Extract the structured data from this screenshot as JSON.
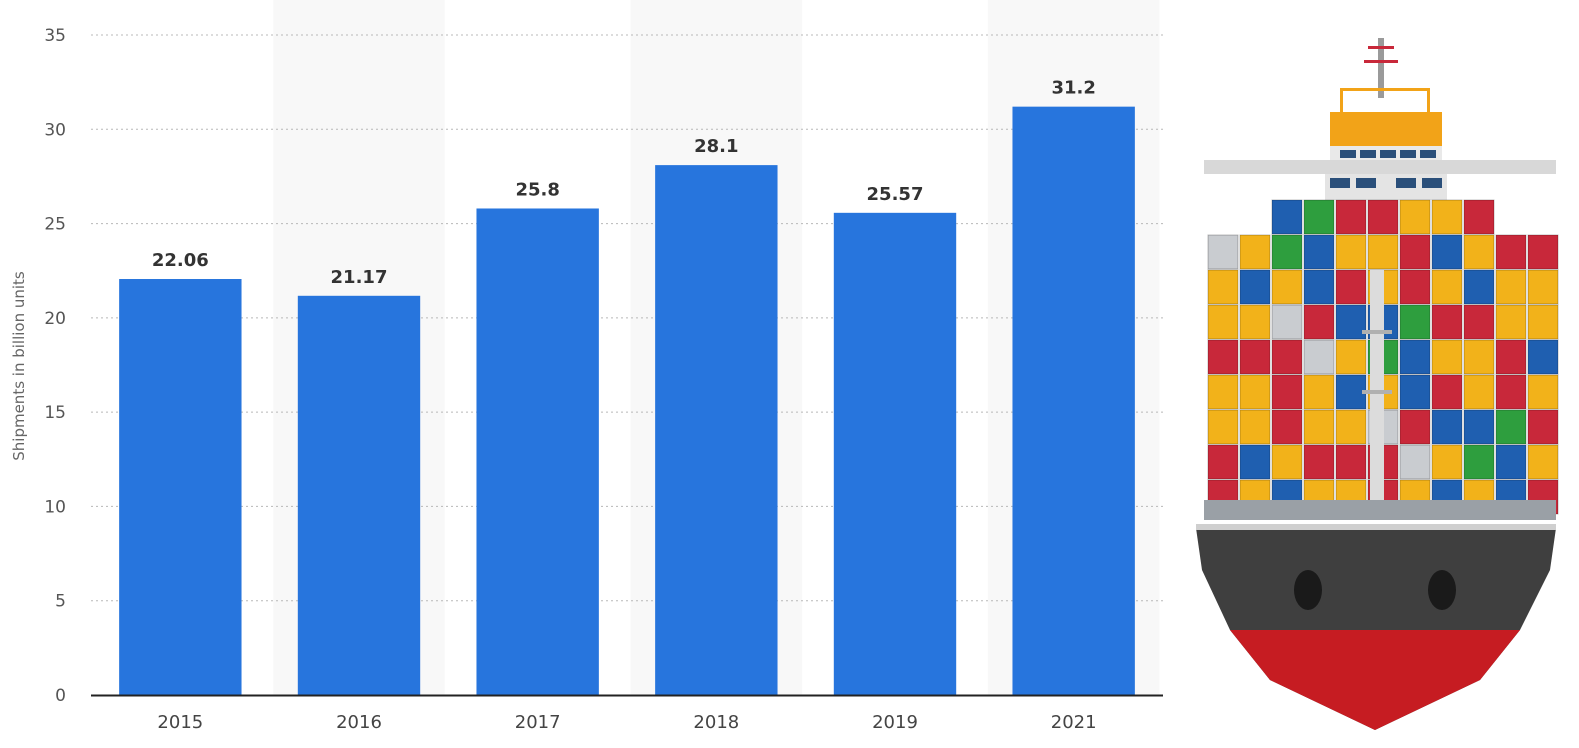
{
  "chart_data": {
    "type": "bar",
    "categories": [
      "2015",
      "2016",
      "2017",
      "2018",
      "2019",
      "2021"
    ],
    "values": [
      22.06,
      21.17,
      25.8,
      28.1,
      25.57,
      31.2
    ],
    "value_labels": [
      "22.06",
      "21.17",
      "25.8",
      "28.1",
      "25.57",
      "31.2"
    ],
    "ylabel": "Shipments in billion units",
    "xlabel": "",
    "ylim": [
      0,
      35
    ],
    "yticks": [
      0,
      5,
      10,
      15,
      20,
      25,
      30,
      35
    ],
    "ytick_labels": [
      "0",
      "5",
      "10",
      "15",
      "20",
      "25",
      "30",
      "35"
    ],
    "grid": true,
    "legend": "none",
    "bar_color": "#2775dd",
    "band_color": "#f8f8f8",
    "grid_color": "#b8b8b8"
  },
  "illustration": {
    "icon": "container-ship-icon",
    "colors": {
      "hull_top": "#3f3f3f",
      "hull_bottom": "#c61c22",
      "bridge": "#f2a318",
      "container_red": "#c8283a",
      "container_yellow": "#f2b21a",
      "container_blue": "#1f5fb0",
      "container_grey": "#c9ccd0",
      "container_green": "#2e9e3e"
    }
  }
}
